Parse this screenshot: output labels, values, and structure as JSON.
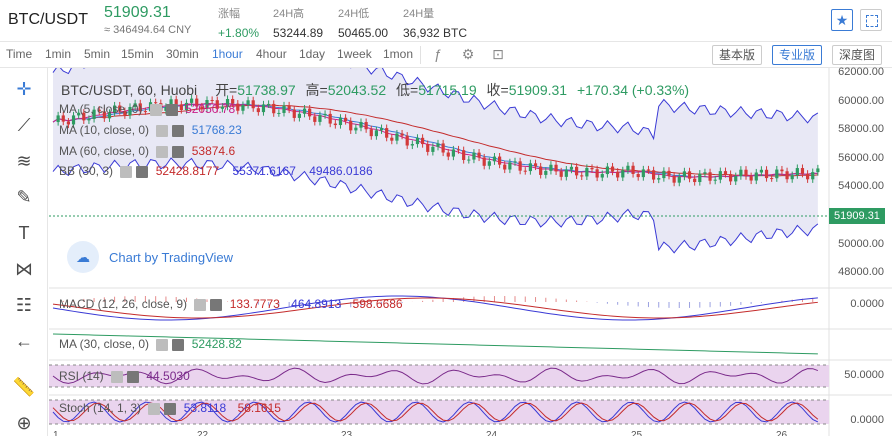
{
  "header": {
    "pair": "BTC/USDT",
    "price": "51909.31",
    "price_cny": "≈ 346494.64 CNY",
    "stats": [
      {
        "label": "涨幅",
        "value": "+1.80%",
        "up": true
      },
      {
        "label": "24H高",
        "value": "53244.89",
        "up": false
      },
      {
        "label": "24H低",
        "value": "50465.00",
        "up": false
      },
      {
        "label": "24H量",
        "value": "36,932 BTC",
        "up": false
      }
    ],
    "star_icon": "★"
  },
  "toolbar": {
    "timeframes": [
      "Time",
      "1min",
      "5min",
      "15min",
      "30min",
      "1hour",
      "4hour",
      "1day",
      "1week",
      "1mon"
    ],
    "active_timeframe": "1hour",
    "views": [
      "基本版",
      "专业版",
      "深度图"
    ],
    "active_view": "专业版"
  },
  "chart": {
    "title": "BTC/USDT, 60, Huobi",
    "ohlc": {
      "open_label": "开=",
      "open": "51738.97",
      "high_label": "高=",
      "high": "52043.52",
      "low_label": "低=",
      "low": "51715.19",
      "close_label": "收=",
      "close": "51909.31",
      "change": "+170.34 (+0.33%)"
    },
    "indicators": [
      {
        "name": "MA (5, close, 0)",
        "values": [
          "52050.78"
        ],
        "colors": [
          "#c9208a"
        ]
      },
      {
        "name": "MA (10, close, 0)",
        "values": [
          "51768.23"
        ],
        "colors": [
          "#3a7bd5"
        ]
      },
      {
        "name": "MA (60, close, 0)",
        "values": [
          "53874.6"
        ],
        "colors": [
          "#c42b2b"
        ]
      },
      {
        "name": "BB (30, 3)",
        "values": [
          "52428.8177",
          "55371.6167",
          "49486.0186"
        ],
        "colors": [
          "#c42b2b",
          "#3a3ad5",
          "#3a3ad5"
        ]
      }
    ],
    "tv_badge": "Chart by TradingView",
    "last_price": "51909.31",
    "y_labels": [
      "62000.00",
      "60000.00",
      "58000.00",
      "56000.00",
      "54000.00",
      "52000.00",
      "50000.00",
      "48000.00"
    ],
    "y_values": [
      62000,
      60000,
      58000,
      56000,
      54000,
      52000,
      50000,
      48000
    ],
    "x_labels": [
      "1",
      "22",
      "23",
      "24",
      "25",
      "26"
    ]
  },
  "panes": {
    "macd": {
      "name": "MACD (12, 26, close, 9)",
      "values": [
        "133.7773",
        "464.8913",
        "598.6686"
      ],
      "colors": [
        "#c42b2b",
        "#3a3ad5",
        "#c42b2b"
      ],
      "y_label": "0.0000"
    },
    "ma30": {
      "name": "MA (30, close, 0)",
      "values": [
        "52428.82"
      ],
      "colors": [
        "#2e9b62"
      ]
    },
    "rsi": {
      "name": "RSI (14)",
      "values": [
        "44.5030"
      ],
      "colors": [
        "#7a2a8a"
      ],
      "y_label": "50.0000"
    },
    "stoch": {
      "name": "Stoch (14, 1, 3)",
      "values": [
        "53.8118",
        "58.1615"
      ],
      "colors": [
        "#3a3ad5",
        "#c42b2b"
      ],
      "y_label": "0.0000"
    }
  },
  "colors": {
    "up": "#2e9b62",
    "down": "#d33a3a",
    "accent": "#3a7bd5",
    "bb_fill": "#d8d8ee"
  },
  "tools": [
    "crosshair-icon",
    "trend-line-icon",
    "fib-icon",
    "brush-icon",
    "text-icon",
    "pattern-icon",
    "measure-icon",
    "back-arrow-icon",
    "ruler-icon",
    "zoom-in-icon"
  ]
}
